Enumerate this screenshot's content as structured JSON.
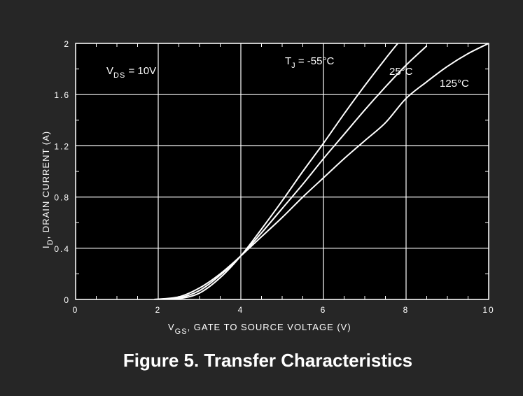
{
  "caption": "Figure 5. Transfer Characteristics",
  "colors": {
    "background": "#262626",
    "plot_area": "#000000",
    "grid": "#ffffff",
    "curve": "#ffffff",
    "text": "#ffffff"
  },
  "chart_data": {
    "type": "line",
    "title": "",
    "xlabel_main": "V",
    "xlabel_sub": "GS",
    "xlabel_rest": ", GATE TO SOURCE VOLTAGE (V)",
    "ylabel_main": "I",
    "ylabel_sub": "D",
    "ylabel_rest": ", DRAIN CURRENT (A)",
    "xlim": [
      0,
      10
    ],
    "ylim": [
      0,
      2
    ],
    "xticks": [
      {
        "value": 0,
        "label": "0"
      },
      {
        "value": 2,
        "label": "2"
      },
      {
        "value": 4,
        "label": "4"
      },
      {
        "value": 6,
        "label": "6"
      },
      {
        "value": 8,
        "label": "8"
      },
      {
        "value": 10,
        "label": "10"
      }
    ],
    "yticks": [
      {
        "value": 0,
        "label": "0"
      },
      {
        "value": 0.4,
        "label": "0.4"
      },
      {
        "value": 0.8,
        "label": "0.8"
      },
      {
        "value": 1.2,
        "label": "1.2"
      },
      {
        "value": 1.6,
        "label": "1.6"
      },
      {
        "value": 2,
        "label": "2"
      }
    ],
    "grid": true,
    "annotation_vds_main": "V",
    "annotation_vds_sub": "DS",
    "annotation_vds_rest": " = 10V",
    "series": [
      {
        "name": "T J = -55°C",
        "x": [
          2.0,
          2.5,
          3.0,
          3.5,
          4.0,
          4.5,
          5.0,
          5.5,
          6.0,
          6.5,
          7.0,
          7.5,
          7.8
        ],
        "y": [
          0.0,
          0.006,
          0.05,
          0.17,
          0.34,
          0.55,
          0.77,
          1.0,
          1.22,
          1.45,
          1.67,
          1.88,
          2.0
        ]
      },
      {
        "name": "25°C",
        "x": [
          2.0,
          2.5,
          3.0,
          3.5,
          4.0,
          4.5,
          5.0,
          5.5,
          6.0,
          6.5,
          7.0,
          7.5,
          8.0,
          8.5
        ],
        "y": [
          0.0,
          0.012,
          0.07,
          0.19,
          0.34,
          0.52,
          0.71,
          0.9,
          1.1,
          1.29,
          1.48,
          1.66,
          1.83,
          1.98
        ]
      },
      {
        "name": "125°C",
        "x": [
          1.9,
          2.5,
          3.0,
          3.5,
          4.0,
          4.5,
          5.0,
          5.5,
          6.0,
          6.5,
          7.0,
          7.5,
          8.0,
          8.5,
          9.0,
          9.5,
          10.0
        ],
        "y": [
          0.0,
          0.02,
          0.09,
          0.2,
          0.34,
          0.49,
          0.64,
          0.8,
          0.95,
          1.1,
          1.24,
          1.38,
          1.57,
          1.7,
          1.82,
          1.92,
          2.0
        ]
      }
    ],
    "curve_labels": [
      {
        "series": 0,
        "main": "T",
        "sub": "J",
        "rest": " = -55°C"
      },
      {
        "series": 1,
        "main": "25°C",
        "sub": "",
        "rest": ""
      },
      {
        "series": 2,
        "main": "125°C",
        "sub": "",
        "rest": ""
      }
    ]
  }
}
